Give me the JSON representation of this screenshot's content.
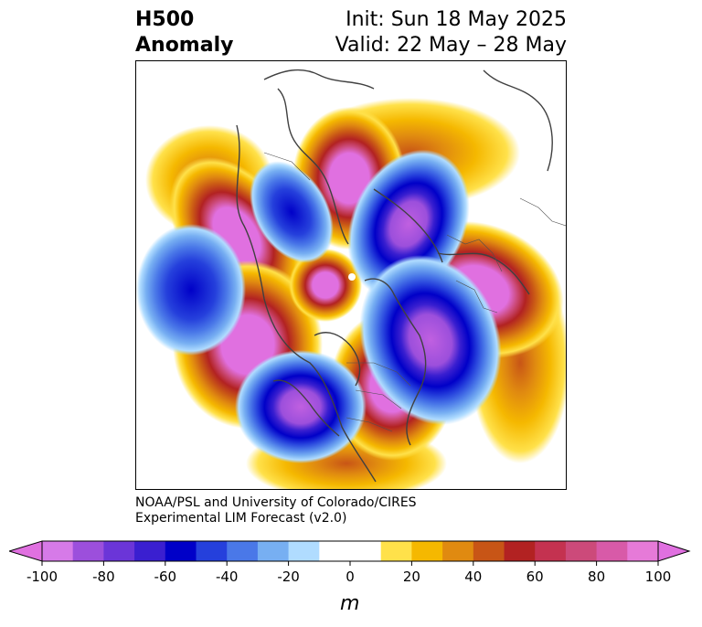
{
  "header": {
    "title_line1": "H500",
    "title_line2": "Anomaly",
    "init_label": "Init: Sun 18 May 2025",
    "valid_label": "Valid: 22 May – 28 May"
  },
  "credit": {
    "line1": "NOAA/PSL and University of Colorado/CIRES",
    "line2": "Experimental LIM Forecast (v2.0)"
  },
  "colorbar": {
    "units": "m",
    "ticks": [
      "-100",
      "-80",
      "-60",
      "-40",
      "-20",
      "0",
      "20",
      "40",
      "60",
      "80",
      "100"
    ],
    "levels": [
      "#d67ae8",
      "#9c4fdc",
      "#6b35d8",
      "#3a1fd0",
      "#0000c8",
      "#2540dc",
      "#4a78e8",
      "#77aff2",
      "#b0dcff",
      "#ffffff",
      "#ffffff",
      "#ffe14a",
      "#f5b800",
      "#e08a10",
      "#c85516",
      "#b22222",
      "#c43250",
      "#cc4a7a",
      "#d85aa8",
      "#e67ad8"
    ],
    "neg_extend_color": "#e070e0",
    "pos_extend_color": "#e070e0"
  },
  "map": {
    "projection": "north polar stereographic",
    "coastline_color": "#404040"
  }
}
